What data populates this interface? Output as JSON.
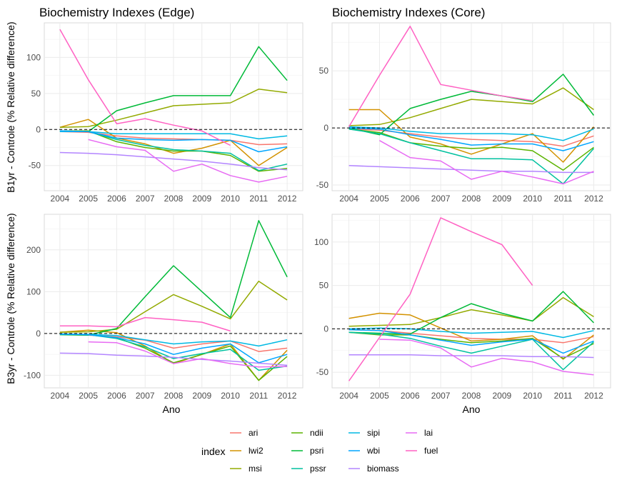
{
  "chart_data": {
    "type": "line",
    "legend": {
      "title": "index",
      "position": "bottom",
      "entries": [
        {
          "name": "ari",
          "color": "#F8766D"
        },
        {
          "name": "lwi2",
          "color": "#D39200"
        },
        {
          "name": "msi",
          "color": "#93AA00"
        },
        {
          "name": "ndii",
          "color": "#5BB300"
        },
        {
          "name": "psri",
          "color": "#00BA38"
        },
        {
          "name": "pssr",
          "color": "#00C19F"
        },
        {
          "name": "sipi",
          "color": "#00B9E3"
        },
        {
          "name": "wbi",
          "color": "#00A5FF"
        },
        {
          "name": "biomass",
          "color": "#B385FF"
        },
        {
          "name": "lai",
          "color": "#E76BF3"
        },
        {
          "name": "fuel",
          "color": "#FF61C3"
        }
      ]
    },
    "baseline": 0,
    "grid": true,
    "panels": [
      {
        "id": "edge_b1",
        "title": "Biochemistry Indexes (Edge)",
        "ylabel": "B1yr - Controle (% Relative difference)",
        "xlabel": "",
        "x": [
          2004,
          2005,
          2006,
          2007,
          2008,
          2009,
          2010,
          2011,
          2012
        ],
        "ylim": [
          -85,
          148
        ],
        "yticks": [
          -50,
          0,
          50,
          100
        ],
        "series": [
          {
            "name": "ari",
            "values": [
              -3,
              -4,
              -9,
              -12,
              -13,
              -14,
              -15,
              -21,
              -20
            ]
          },
          {
            "name": "lwi2",
            "values": [
              3,
              14,
              -12,
              -20,
              -33,
              -26,
              -15,
              -50,
              -25
            ]
          },
          {
            "name": "msi",
            "values": [
              3,
              4,
              13,
              23,
              33,
              35,
              37,
              56,
              51
            ]
          },
          {
            "name": "ndii",
            "values": [
              -2,
              -2,
              -17,
              -25,
              -30,
              -30,
              -36,
              -58,
              -54
            ]
          },
          {
            "name": "psri",
            "values": [
              -3,
              -3,
              26,
              37,
              47,
              47,
              47,
              115,
              68
            ]
          },
          {
            "name": "pssr",
            "values": [
              -2,
              -3,
              -14,
              -22,
              -28,
              -30,
              -33,
              -57,
              -48
            ]
          },
          {
            "name": "sipi",
            "values": [
              -3,
              -3,
              -6,
              -6,
              -6,
              -6,
              -6,
              -13,
              -9
            ]
          },
          {
            "name": "wbi",
            "values": [
              -2,
              -3,
              -12,
              -14,
              -15,
              -14,
              -15,
              -31,
              -24
            ]
          },
          {
            "name": "biomass",
            "values": [
              -32,
              -33,
              -35,
              -38,
              -41,
              -44,
              -48,
              -53,
              -56
            ]
          },
          {
            "name": "lai",
            "values": [
              null,
              -14,
              -24,
              -29,
              -58,
              -48,
              -64,
              -73,
              -65
            ]
          },
          {
            "name": "fuel",
            "values": [
              139,
              69,
              8,
              15,
              6,
              -2,
              -22,
              null,
              null
            ]
          }
        ]
      },
      {
        "id": "core_b1",
        "title": "Biochemistry Indexes (Core)",
        "ylabel": "",
        "xlabel": "",
        "x": [
          2004,
          2005,
          2006,
          2007,
          2008,
          2009,
          2010,
          2011,
          2012
        ],
        "ylim": [
          -55,
          92
        ],
        "yticks": [
          -50,
          0,
          50
        ],
        "series": [
          {
            "name": "ari",
            "values": [
              -1,
              -2,
              -5,
              -8,
              -10,
              -11,
              -12,
              -16,
              -7
            ]
          },
          {
            "name": "lwi2",
            "values": [
              16,
              16,
              -8,
              -14,
              -23,
              -14,
              -5,
              -30,
              1
            ]
          },
          {
            "name": "msi",
            "values": [
              2,
              3,
              9,
              17,
              25,
              23,
              21,
              35,
              16
            ]
          },
          {
            "name": "ndii",
            "values": [
              -1,
              -4,
              -13,
              -16,
              -18,
              -17,
              -20,
              -37,
              -17
            ]
          },
          {
            "name": "psri",
            "values": [
              0,
              -6,
              17,
              25,
              32,
              28,
              23,
              47,
              11
            ]
          },
          {
            "name": "pssr",
            "values": [
              -1,
              -5,
              -13,
              -20,
              -27,
              -27,
              -28,
              -49,
              -18
            ]
          },
          {
            "name": "sipi",
            "values": [
              1,
              0,
              -3,
              -5,
              -5,
              -5,
              -6,
              -11,
              -1
            ]
          },
          {
            "name": "wbi",
            "values": [
              0,
              -1,
              -6,
              -10,
              -15,
              -14,
              -14,
              -20,
              -12
            ]
          },
          {
            "name": "biomass",
            "values": [
              -33,
              -34,
              -35,
              -36,
              -37,
              -38,
              -38,
              -39,
              -39
            ]
          },
          {
            "name": "lai",
            "values": [
              null,
              -11,
              -26,
              -29,
              -45,
              -38,
              -43,
              -49,
              -38
            ]
          },
          {
            "name": "fuel",
            "values": [
              1,
              46,
              89,
              38,
              33,
              28,
              24,
              null,
              null
            ]
          }
        ]
      },
      {
        "id": "edge_b3",
        "title": "",
        "ylabel": "B3yr - Controle (% Relative difference)",
        "xlabel": "Ano",
        "x": [
          2004,
          2005,
          2006,
          2007,
          2008,
          2009,
          2010,
          2011,
          2012
        ],
        "ylim": [
          -130,
          285
        ],
        "yticks": [
          -100,
          0,
          100,
          200
        ],
        "series": [
          {
            "name": "ari",
            "values": [
              -2,
              -4,
              -8,
              -16,
              -35,
              -25,
              -18,
              -43,
              -35
            ]
          },
          {
            "name": "lwi2",
            "values": [
              3,
              8,
              2,
              -30,
              -72,
              -50,
              -25,
              -112,
              -40
            ]
          },
          {
            "name": "msi",
            "values": [
              3,
              4,
              10,
              52,
              93,
              65,
              35,
              125,
              80
            ]
          },
          {
            "name": "ndii",
            "values": [
              -2,
              -3,
              -10,
              -35,
              -70,
              -50,
              -30,
              -112,
              -55
            ]
          },
          {
            "name": "psri",
            "values": [
              -3,
              -4,
              12,
              88,
              162,
              100,
              38,
              270,
              135
            ]
          },
          {
            "name": "pssr",
            "values": [
              -1,
              -3,
              -12,
              -32,
              -60,
              -48,
              -38,
              -88,
              -78
            ]
          },
          {
            "name": "sipi",
            "values": [
              -2,
              -2,
              -5,
              -15,
              -25,
              -20,
              -18,
              -30,
              -15
            ]
          },
          {
            "name": "wbi",
            "values": [
              -1,
              -3,
              -10,
              -25,
              -50,
              -35,
              -25,
              -70,
              -50
            ]
          },
          {
            "name": "biomass",
            "values": [
              -47,
              -48,
              -52,
              -54,
              -57,
              -62,
              -66,
              -71,
              -76
            ]
          },
          {
            "name": "lai",
            "values": [
              null,
              -20,
              -22,
              -42,
              -72,
              -60,
              -72,
              -80,
              -79
            ]
          },
          {
            "name": "fuel",
            "values": [
              18,
              18,
              16,
              38,
              33,
              27,
              6,
              null,
              null
            ]
          }
        ]
      },
      {
        "id": "core_b3",
        "title": "",
        "ylabel": "",
        "xlabel": "Ano",
        "x": [
          2004,
          2005,
          2006,
          2007,
          2008,
          2009,
          2010,
          2011,
          2012
        ],
        "ylim": [
          -68,
          132
        ],
        "yticks": [
          -50,
          0,
          50,
          100
        ],
        "series": [
          {
            "name": "ari",
            "values": [
              -1,
              -2,
              -5,
              -8,
              -11,
              -12,
              -12,
              -16,
              -9
            ]
          },
          {
            "name": "lwi2",
            "values": [
              12,
              18,
              16,
              1,
              -14,
              -12,
              -8,
              -35,
              -7
            ]
          },
          {
            "name": "msi",
            "values": [
              3,
              4,
              5,
              13,
              22,
              16,
              9,
              36,
              14
            ]
          },
          {
            "name": "ndii",
            "values": [
              -4,
              -7,
              -7,
              -12,
              -16,
              -14,
              -11,
              -34,
              -17
            ]
          },
          {
            "name": "psri",
            "values": [
              -4,
              -5,
              -6,
              13,
              29,
              18,
              9,
              43,
              7
            ]
          },
          {
            "name": "pssr",
            "values": [
              -4,
              -6,
              -11,
              -20,
              -28,
              -20,
              -12,
              -47,
              -15
            ]
          },
          {
            "name": "sipi",
            "values": [
              0,
              1,
              0,
              -3,
              -5,
              -4,
              -3,
              -10,
              -2
            ]
          },
          {
            "name": "wbi",
            "values": [
              -1,
              -2,
              -7,
              -13,
              -19,
              -15,
              -12,
              -28,
              -14
            ]
          },
          {
            "name": "biomass",
            "values": [
              -30,
              -30,
              -30,
              -31,
              -31,
              -31,
              -32,
              -32,
              -33
            ]
          },
          {
            "name": "lai",
            "values": [
              null,
              -12,
              -13,
              -22,
              -44,
              -34,
              -38,
              -49,
              -53
            ]
          },
          {
            "name": "fuel",
            "values": [
              -60,
              -10,
              40,
              128,
              112,
              97,
              50,
              null,
              null
            ]
          }
        ]
      }
    ]
  }
}
